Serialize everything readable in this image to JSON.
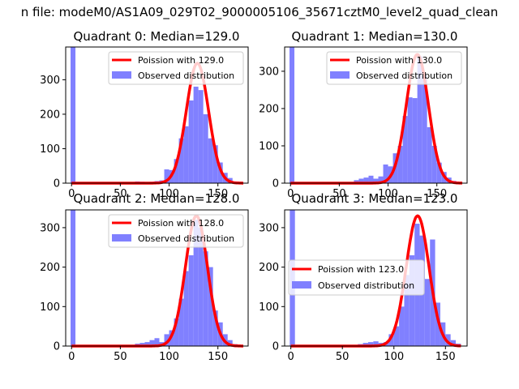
{
  "figure_title": "n file: modeM0/AS1A09_029T02_9000005106_35671cztM0_level2_quad_clean",
  "chart_data": [
    {
      "type": "bar",
      "title": "Quadrant 0: Median=129.0",
      "xlim": [
        -6,
        181
      ],
      "ylim": [
        0,
        395
      ],
      "xticks": [
        0,
        50,
        100,
        150
      ],
      "yticks": [
        0,
        100,
        200,
        300
      ],
      "bins": [
        [
          -1,
          4,
          395
        ],
        [
          65,
          70,
          5
        ],
        [
          70,
          75,
          4
        ],
        [
          75,
          80,
          3
        ],
        [
          80,
          85,
          4
        ],
        [
          85,
          90,
          6
        ],
        [
          90,
          95,
          8
        ],
        [
          95,
          100,
          40
        ],
        [
          100,
          105,
          38
        ],
        [
          105,
          110,
          70
        ],
        [
          110,
          115,
          130
        ],
        [
          115,
          120,
          165
        ],
        [
          120,
          125,
          240
        ],
        [
          125,
          130,
          280
        ],
        [
          130,
          135,
          270
        ],
        [
          135,
          140,
          200
        ],
        [
          140,
          145,
          130
        ],
        [
          145,
          150,
          110
        ],
        [
          150,
          155,
          60
        ],
        [
          155,
          160,
          30
        ],
        [
          160,
          165,
          15
        ],
        [
          165,
          170,
          5
        ],
        [
          170,
          175,
          3
        ]
      ],
      "series": [
        {
          "name": "Poission with 129.0",
          "type": "line",
          "color": "#ff0000",
          "mean": 129.0,
          "peak": 348,
          "xmin": 0,
          "xmax": 176
        },
        {
          "name": "Observed distribution",
          "type": "bar",
          "color": "#8080ff"
        }
      ],
      "legend_loc": "upper right"
    },
    {
      "type": "bar",
      "title": "Quadrant 1: Median=130.0",
      "xlim": [
        -6,
        181
      ],
      "ylim": [
        0,
        365
      ],
      "xticks": [
        0,
        50,
        100,
        150
      ],
      "yticks": [
        0,
        100,
        200,
        300
      ],
      "bins": [
        [
          -1,
          4,
          365
        ],
        [
          65,
          70,
          8
        ],
        [
          70,
          75,
          12
        ],
        [
          75,
          80,
          15
        ],
        [
          80,
          85,
          20
        ],
        [
          85,
          90,
          12
        ],
        [
          90,
          95,
          18
        ],
        [
          95,
          100,
          50
        ],
        [
          100,
          105,
          45
        ],
        [
          105,
          110,
          80
        ],
        [
          110,
          115,
          100
        ],
        [
          115,
          120,
          180
        ],
        [
          120,
          125,
          230
        ],
        [
          125,
          130,
          228
        ],
        [
          130,
          135,
          340
        ],
        [
          135,
          140,
          290
        ],
        [
          140,
          145,
          150
        ],
        [
          145,
          150,
          100
        ],
        [
          150,
          155,
          55
        ],
        [
          155,
          160,
          30
        ],
        [
          160,
          165,
          15
        ],
        [
          165,
          170,
          6
        ],
        [
          170,
          175,
          3
        ]
      ],
      "series": [
        {
          "name": "Poission with 130.0",
          "type": "line",
          "color": "#ff0000",
          "mean": 130.0,
          "peak": 345,
          "xmin": 0,
          "xmax": 176
        },
        {
          "name": "Observed distribution",
          "type": "bar",
          "color": "#8080ff"
        }
      ],
      "legend_loc": "upper right"
    },
    {
      "type": "bar",
      "title": "Quadrant 2: Median=128.0",
      "xlim": [
        -6,
        181
      ],
      "ylim": [
        0,
        345
      ],
      "xticks": [
        0,
        50,
        100,
        150
      ],
      "yticks": [
        0,
        100,
        200,
        300
      ],
      "bins": [
        [
          -1,
          4,
          345
        ],
        [
          65,
          70,
          6
        ],
        [
          70,
          75,
          8
        ],
        [
          75,
          80,
          10
        ],
        [
          80,
          85,
          15
        ],
        [
          85,
          90,
          20
        ],
        [
          90,
          95,
          10
        ],
        [
          95,
          100,
          30
        ],
        [
          100,
          105,
          40
        ],
        [
          105,
          110,
          70
        ],
        [
          110,
          115,
          120
        ],
        [
          115,
          120,
          190
        ],
        [
          120,
          125,
          230
        ],
        [
          125,
          130,
          320
        ],
        [
          130,
          135,
          300
        ],
        [
          135,
          140,
          240
        ],
        [
          140,
          145,
          200
        ],
        [
          145,
          150,
          90
        ],
        [
          150,
          155,
          60
        ],
        [
          155,
          160,
          30
        ],
        [
          160,
          165,
          15
        ],
        [
          165,
          170,
          5
        ],
        [
          170,
          175,
          3
        ]
      ],
      "series": [
        {
          "name": "Poission with 128.0",
          "type": "line",
          "color": "#ff0000",
          "mean": 128.0,
          "peak": 330,
          "xmin": 0,
          "xmax": 176
        },
        {
          "name": "Observed distribution",
          "type": "bar",
          "color": "#8080ff"
        }
      ],
      "legend_loc": "upper right"
    },
    {
      "type": "bar",
      "title": "Quadrant 3: Median=123.0",
      "xlim": [
        -6,
        171
      ],
      "ylim": [
        0,
        345
      ],
      "xticks": [
        0,
        50,
        100,
        150
      ],
      "yticks": [
        0,
        100,
        200,
        300
      ],
      "bins": [
        [
          -1,
          4,
          345
        ],
        [
          65,
          70,
          5
        ],
        [
          70,
          75,
          8
        ],
        [
          75,
          80,
          10
        ],
        [
          80,
          85,
          12
        ],
        [
          85,
          90,
          8
        ],
        [
          90,
          95,
          10
        ],
        [
          95,
          100,
          30
        ],
        [
          100,
          105,
          50
        ],
        [
          105,
          110,
          100
        ],
        [
          110,
          115,
          180
        ],
        [
          115,
          120,
          230
        ],
        [
          120,
          125,
          310
        ],
        [
          125,
          130,
          280
        ],
        [
          130,
          135,
          170
        ],
        [
          135,
          140,
          270
        ],
        [
          140,
          145,
          110
        ],
        [
          145,
          150,
          60
        ],
        [
          150,
          155,
          30
        ],
        [
          155,
          160,
          15
        ],
        [
          160,
          165,
          6
        ]
      ],
      "series": [
        {
          "name": "Poission with 123.0",
          "type": "line",
          "color": "#ff0000",
          "mean": 123.0,
          "peak": 330,
          "xmin": 0,
          "xmax": 165
        },
        {
          "name": "Observed distribution",
          "type": "bar",
          "color": "#8080ff"
        }
      ],
      "legend_loc": "center left"
    }
  ]
}
